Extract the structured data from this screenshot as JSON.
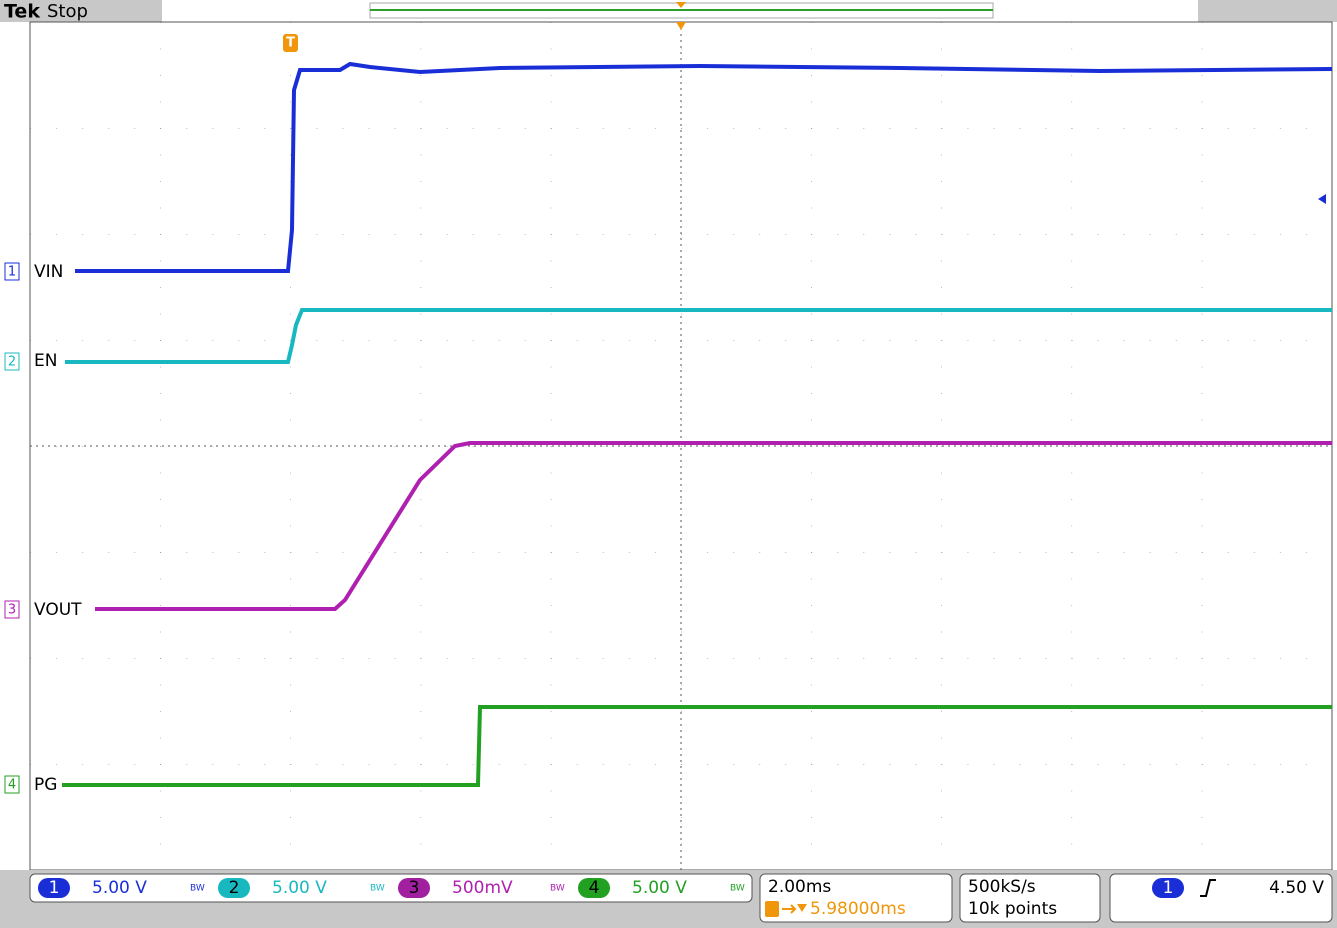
{
  "header": {
    "brand": "Tek",
    "status": "Stop"
  },
  "channels": [
    {
      "number": "1",
      "label": "VIN",
      "scale": "5.00 V",
      "bw": "BW"
    },
    {
      "number": "2",
      "label": "EN",
      "scale": "5.00 V",
      "bw": "BW"
    },
    {
      "number": "3",
      "label": "VOUT",
      "scale": "500mV",
      "bw": "BW"
    },
    {
      "number": "4",
      "label": "PG",
      "scale": "5.00 V",
      "bw": "BW"
    }
  ],
  "trigger_marker": "T",
  "timebase": {
    "scale": "2.00ms",
    "trigger_position": "5.98000ms"
  },
  "acquisition": {
    "sample_rate": "500kS/s",
    "record_length": "10k points"
  },
  "trigger": {
    "source": "1",
    "level": "4.50 V"
  }
}
